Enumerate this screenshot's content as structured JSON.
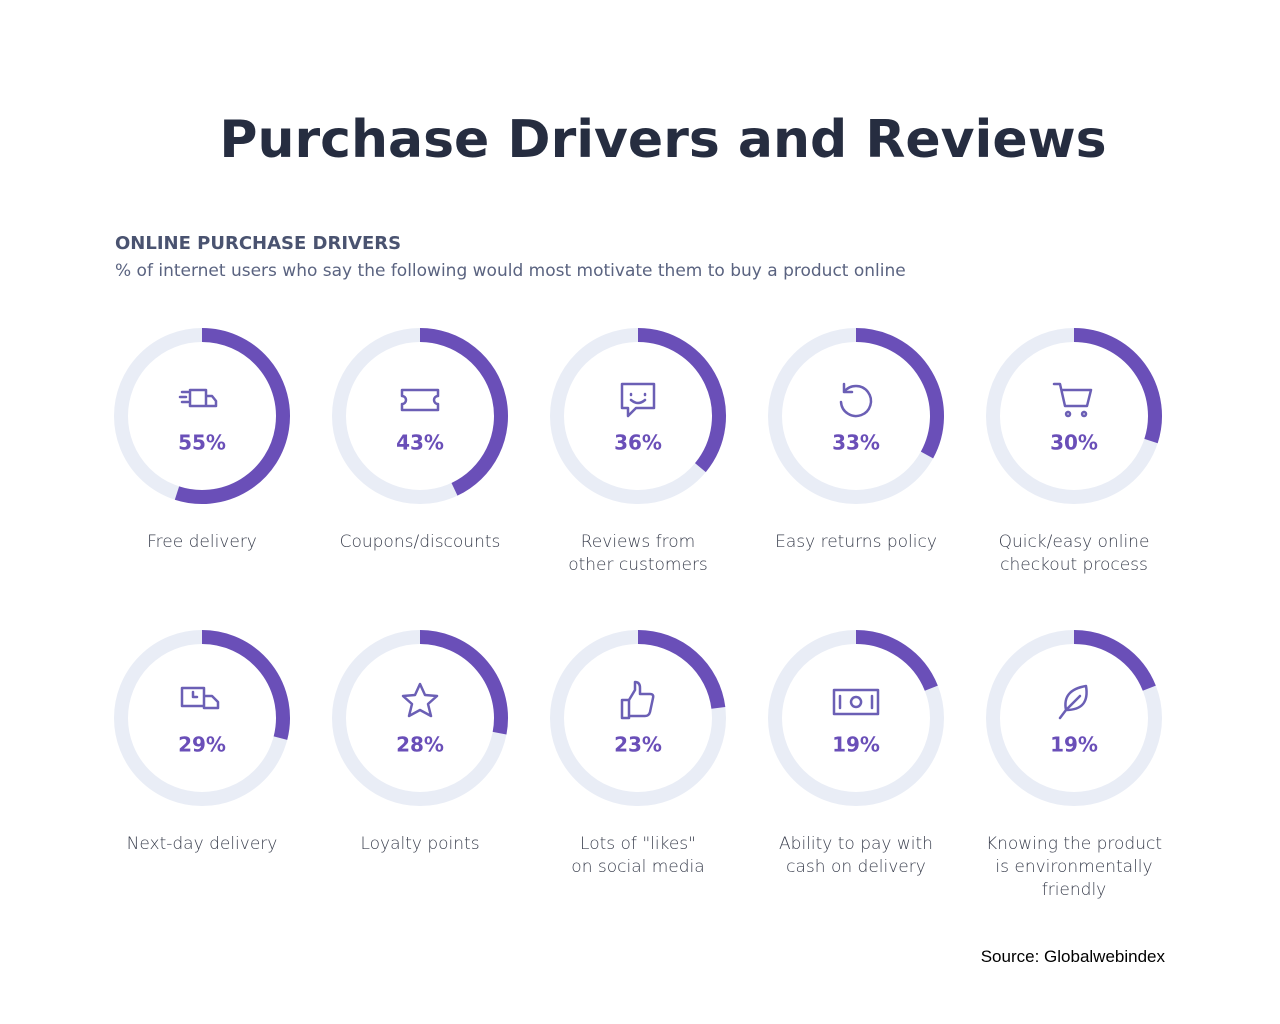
{
  "chart_data": {
    "type": "gauge",
    "title": "Purchase Drivers and Reviews",
    "heading": "ONLINE PURCHASE DRIVERS",
    "subtitle": "% of internet users who say the following would most motivate them to buy a product online",
    "categories": [
      "Free delivery",
      "Coupons/discounts",
      "Reviews from\nother customers",
      "Easy returns policy",
      "Quick/easy online\ncheckout process",
      "Next-day delivery",
      "Loyalty points",
      "Lots of \"likes\"\non social media",
      "Ability to pay with\ncash on delivery",
      "Knowing the product\nis environmentally\nfriendly"
    ],
    "values": [
      55,
      43,
      36,
      33,
      30,
      29,
      28,
      23,
      19,
      19
    ],
    "value_labels": [
      "55%",
      "43%",
      "36%",
      "33%",
      "30%",
      "29%",
      "28%",
      "23%",
      "19%",
      "19%"
    ],
    "ylim": [
      0,
      100
    ],
    "color": "#6a4fb8",
    "track_color": "#e9edf6",
    "source": "Source: Globalwebindex"
  }
}
